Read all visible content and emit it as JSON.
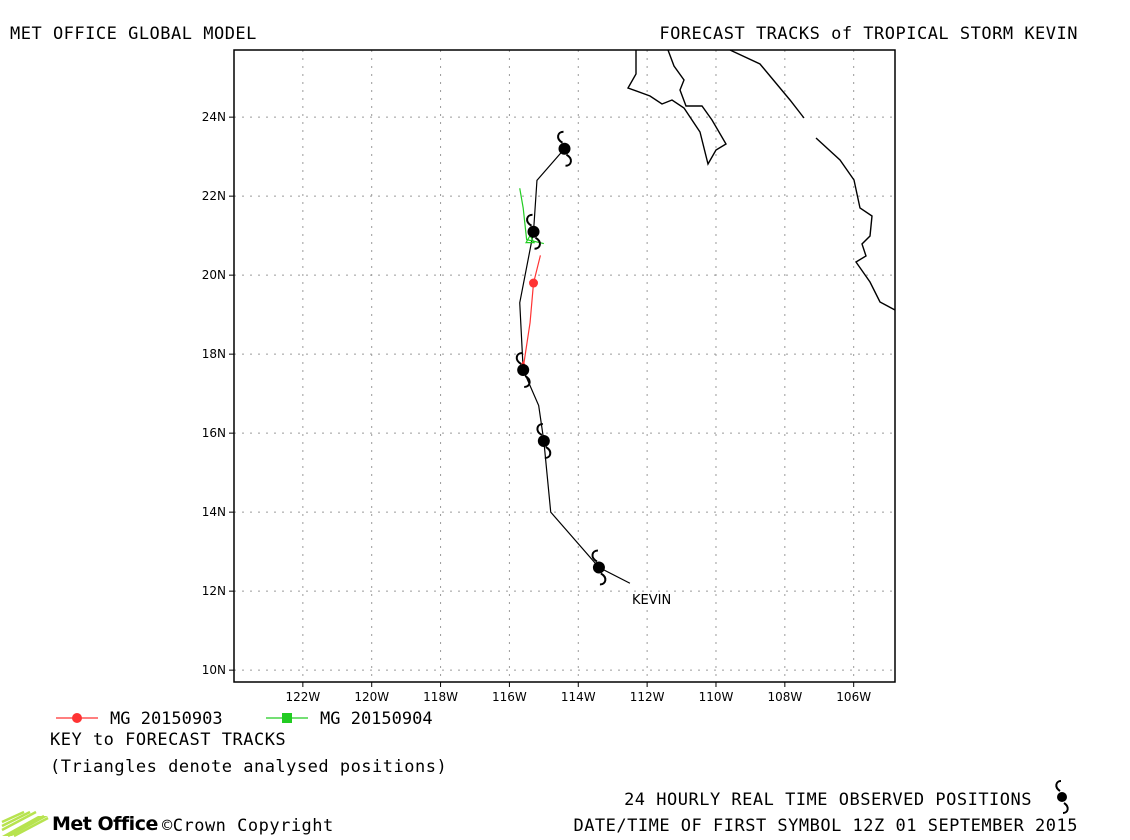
{
  "header": {
    "model": "MET OFFICE GLOBAL MODEL",
    "title": "FORECAST TRACKS of TROPICAL STORM KEVIN"
  },
  "map": {
    "lat_ticks": [
      "24N",
      "22N",
      "20N",
      "18N",
      "16N",
      "14N",
      "12N",
      "10N"
    ],
    "lon_ticks": [
      "122W",
      "120W",
      "118W",
      "116W",
      "114W",
      "112W",
      "110W",
      "108W",
      "106W"
    ],
    "lon_range": [
      -124.0,
      -104.8
    ],
    "lat_range": [
      9.7,
      25.7
    ],
    "storm_label": "KEVIN",
    "colors": {
      "observed": "#000000",
      "forecast_0903": "#ff3333",
      "forecast_0904": "#22cc22",
      "grid": "#9a9a9a"
    }
  },
  "tracks": {
    "observed": {
      "name": "KEVIN",
      "points": [
        [
          -112.5,
          12.2
        ],
        [
          -113.4,
          12.6
        ],
        [
          -114.8,
          14.0
        ],
        [
          -115.0,
          15.8
        ],
        [
          -115.15,
          16.7
        ],
        [
          -115.6,
          17.6
        ],
        [
          -115.7,
          19.3
        ],
        [
          -115.3,
          21.1
        ],
        [
          -115.2,
          22.4
        ],
        [
          -114.4,
          23.2
        ]
      ],
      "symbols": [
        [
          -113.4,
          12.6
        ],
        [
          -115.0,
          15.8
        ],
        [
          -115.6,
          17.6
        ],
        [
          -115.3,
          21.1
        ],
        [
          -114.4,
          23.2
        ]
      ]
    },
    "forecast_0903": {
      "points": [
        [
          -115.6,
          17.65
        ],
        [
          -115.4,
          18.8
        ],
        [
          -115.3,
          19.8
        ],
        [
          -115.1,
          20.5
        ]
      ],
      "markers": [
        [
          -115.3,
          19.8
        ]
      ],
      "triangle": [
        -115.6,
        17.7
      ]
    },
    "forecast_0904": {
      "points": [
        [
          -115.5,
          20.9
        ],
        [
          -115.6,
          21.7
        ],
        [
          -115.7,
          22.2
        ]
      ],
      "triangle": [
        -115.4,
        20.9
      ],
      "tail": [
        -115.0,
        20.8
      ]
    }
  },
  "legend": {
    "items": [
      {
        "label": "MG 20150903",
        "color": "#ff3333",
        "marker": "circle"
      },
      {
        "label": "MG 20150904",
        "color": "#22cc22",
        "marker": "square"
      }
    ],
    "key_title": "KEY to FORECAST TRACKS",
    "key_note": "(Triangles denote analysed positions)"
  },
  "footer": {
    "observed_note": "24 HOURLY REAL TIME OBSERVED POSITIONS",
    "datetime": "DATE/TIME OF FIRST SYMBOL 12Z 01 SEPTEMBER 2015",
    "logo": "Met Office",
    "copyright": "©Crown Copyright"
  }
}
